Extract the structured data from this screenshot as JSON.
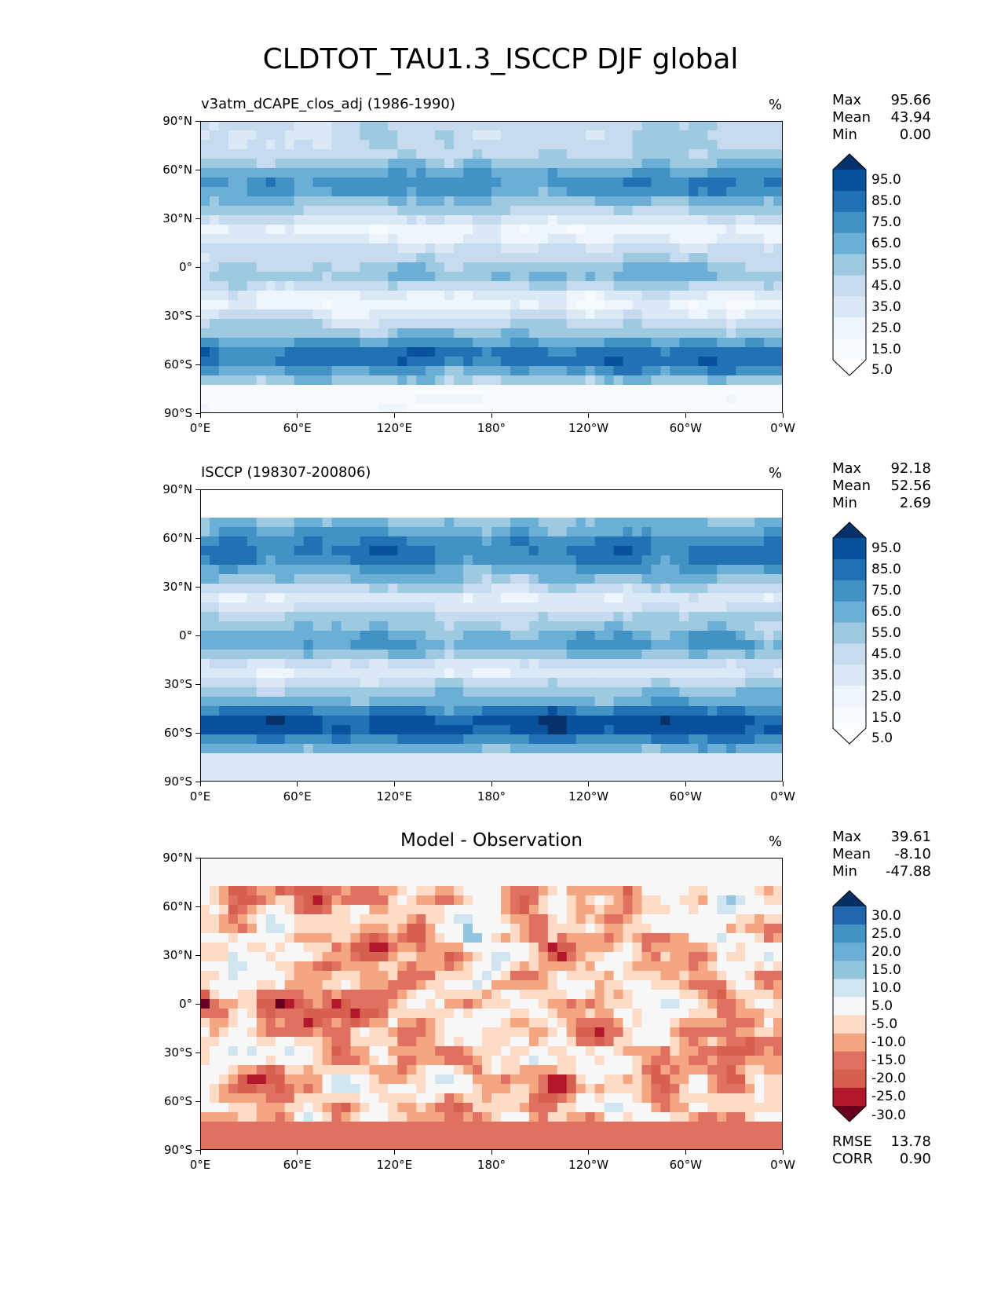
{
  "figure": {
    "title": "CLDTOT_TAU1.3_ISCCP DJF global"
  },
  "chart_data": [
    {
      "type": "heatmap",
      "panel": "test",
      "title": "v3atm_dCAPE_clos_adj (1986-1990)",
      "units": "%",
      "stats": {
        "max_label": "Max",
        "max": "95.66",
        "mean_label": "Mean",
        "mean": "43.94",
        "min_label": "Min",
        "min": "0.00"
      },
      "colorbar": {
        "levels": [
          "95.0",
          "85.0",
          "75.0",
          "65.0",
          "55.0",
          "45.0",
          "35.0",
          "25.0",
          "15.0",
          "5.0"
        ],
        "colors": [
          "#08306b",
          "#08519c",
          "#2171b5",
          "#4292c6",
          "#6baed6",
          "#9ecae1",
          "#c6dbef",
          "#dbe9f6",
          "#eef5fc",
          "#f7fbff",
          "#ffffff"
        ]
      },
      "xlim": [
        0,
        360
      ],
      "ylim": [
        -90,
        90
      ],
      "xticks": [
        "0°E",
        "60°E",
        "120°E",
        "180°",
        "120°W",
        "60°W",
        "0°W"
      ],
      "yticks": [
        "90°N",
        "60°N",
        "30°N",
        "0°",
        "30°S",
        "60°S",
        "90°S"
      ]
    },
    {
      "type": "heatmap",
      "panel": "reference",
      "title": "ISCCP (198307-200806)",
      "units": "%",
      "stats": {
        "max_label": "Max",
        "max": "92.18",
        "mean_label": "Mean",
        "mean": "52.56",
        "min_label": "Min",
        "min": "2.69"
      },
      "colorbar": {
        "levels": [
          "95.0",
          "85.0",
          "75.0",
          "65.0",
          "55.0",
          "45.0",
          "35.0",
          "25.0",
          "15.0",
          "5.0"
        ],
        "colors": [
          "#08306b",
          "#08519c",
          "#2171b5",
          "#4292c6",
          "#6baed6",
          "#9ecae1",
          "#c6dbef",
          "#dbe9f6",
          "#eef5fc",
          "#f7fbff",
          "#ffffff"
        ]
      },
      "xlim": [
        0,
        360
      ],
      "ylim": [
        -90,
        90
      ],
      "xticks": [
        "0°E",
        "60°E",
        "120°E",
        "180°",
        "120°W",
        "60°W",
        "0°W"
      ],
      "yticks": [
        "90°N",
        "60°N",
        "30°N",
        "0°",
        "30°S",
        "60°S",
        "90°S"
      ]
    },
    {
      "type": "heatmap",
      "panel": "difference",
      "title": "Model - Observation",
      "units": "%",
      "stats": {
        "max_label": "Max",
        "max": "39.61",
        "mean_label": "Mean",
        "mean": "-8.10",
        "min_label": "Min",
        "min": "-47.88"
      },
      "extra_stats": {
        "rmse_label": "RMSE",
        "rmse": "13.78",
        "corr_label": "CORR",
        "corr": "0.90"
      },
      "colorbar": {
        "levels": [
          "30.0",
          "25.0",
          "20.0",
          "15.0",
          "10.0",
          "5.0",
          "-5.0",
          "-10.0",
          "-15.0",
          "-20.0",
          "-25.0",
          "-30.0"
        ],
        "colors": [
          "#053061",
          "#2166ac",
          "#4393c3",
          "#6baed6",
          "#92c5de",
          "#d1e5f0",
          "#f7f7f7",
          "#fddbc7",
          "#f4a582",
          "#e07060",
          "#d6604d",
          "#b2182b",
          "#67001f"
        ]
      },
      "xlim": [
        0,
        360
      ],
      "ylim": [
        -90,
        90
      ],
      "xticks": [
        "0°E",
        "60°E",
        "120°E",
        "180°",
        "120°W",
        "60°W",
        "0°W"
      ],
      "yticks": [
        "90°N",
        "60°N",
        "30°N",
        "0°",
        "30°S",
        "60°S",
        "90°S"
      ]
    }
  ]
}
